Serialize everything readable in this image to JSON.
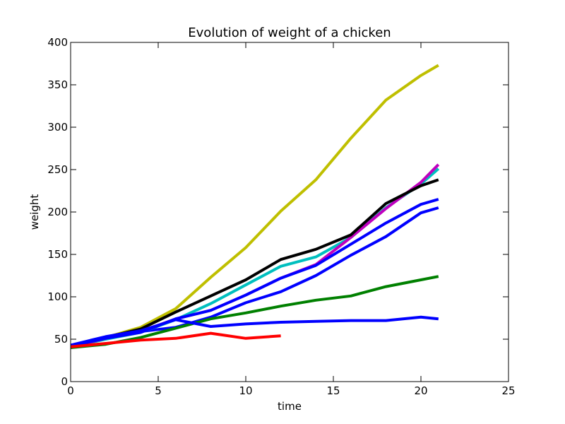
{
  "chart_data": {
    "type": "line",
    "title": "Evolution of weight of a chicken",
    "xlabel": "time",
    "ylabel": "weight",
    "xlim": [
      0,
      25
    ],
    "ylim": [
      0,
      400
    ],
    "xticks": [
      0,
      5,
      10,
      15,
      20,
      25
    ],
    "yticks": [
      0,
      50,
      100,
      150,
      200,
      250,
      300,
      350,
      400
    ],
    "grid": false,
    "legend": "none",
    "series": [
      {
        "color": "#0000ff",
        "x": [
          0,
          2,
          4,
          6,
          8,
          10,
          12,
          14,
          16,
          18,
          20,
          21
        ],
        "y": [
          42,
          51,
          59,
          64,
          76,
          93,
          106,
          125,
          149,
          171,
          199,
          205
        ]
      },
      {
        "color": "#bfbf00",
        "x": [
          0,
          2,
          4,
          6,
          8,
          10,
          12,
          14,
          16,
          18,
          20,
          21
        ],
        "y": [
          41,
          52,
          64,
          86,
          123,
          158,
          201,
          238,
          287,
          332,
          361,
          373
        ]
      },
      {
        "color": "#00bfbf",
        "x": [
          0,
          2,
          4,
          6,
          8,
          10,
          12,
          14,
          16,
          18,
          20,
          21
        ],
        "y": [
          41,
          50,
          58,
          73,
          92,
          114,
          136,
          147,
          170,
          205,
          233,
          251
        ]
      },
      {
        "color": "#bf00bf",
        "x": [
          0,
          2,
          4,
          6,
          8,
          10,
          12,
          14,
          16,
          18,
          20,
          21
        ],
        "y": [
          41,
          51,
          59,
          74,
          84,
          102,
          122,
          138,
          170,
          204,
          235,
          256
        ]
      },
      {
        "color": "#000000",
        "x": [
          0,
          2,
          4,
          6,
          8,
          10,
          12,
          14,
          16,
          18,
          20,
          21
        ],
        "y": [
          41,
          52,
          62,
          82,
          101,
          120,
          144,
          156,
          173,
          210,
          231,
          238
        ]
      },
      {
        "color": "#0000ff",
        "x": [
          0,
          2,
          4,
          6,
          8,
          10,
          12,
          14,
          16,
          18,
          20,
          21
        ],
        "y": [
          42,
          51,
          58,
          74,
          84,
          102,
          122,
          137,
          162,
          187,
          209,
          215
        ]
      },
      {
        "color": "#008000",
        "x": [
          0,
          2,
          4,
          6,
          8,
          10,
          12,
          14,
          16,
          18,
          20,
          21
        ],
        "y": [
          40,
          44,
          52,
          63,
          74,
          81,
          89,
          96,
          101,
          112,
          120,
          124
        ]
      },
      {
        "color": "#0000ff",
        "x": [
          0,
          2,
          4,
          6,
          8,
          10,
          12,
          14,
          16,
          18,
          20,
          21
        ],
        "y": [
          43,
          53,
          60,
          73,
          65,
          68,
          70,
          71,
          72,
          72,
          76,
          74
        ]
      },
      {
        "color": "#ff0000",
        "x": [
          0,
          2,
          4,
          6,
          8,
          10,
          12
        ],
        "y": [
          41,
          45,
          49,
          51,
          57,
          51,
          54
        ]
      }
    ]
  }
}
